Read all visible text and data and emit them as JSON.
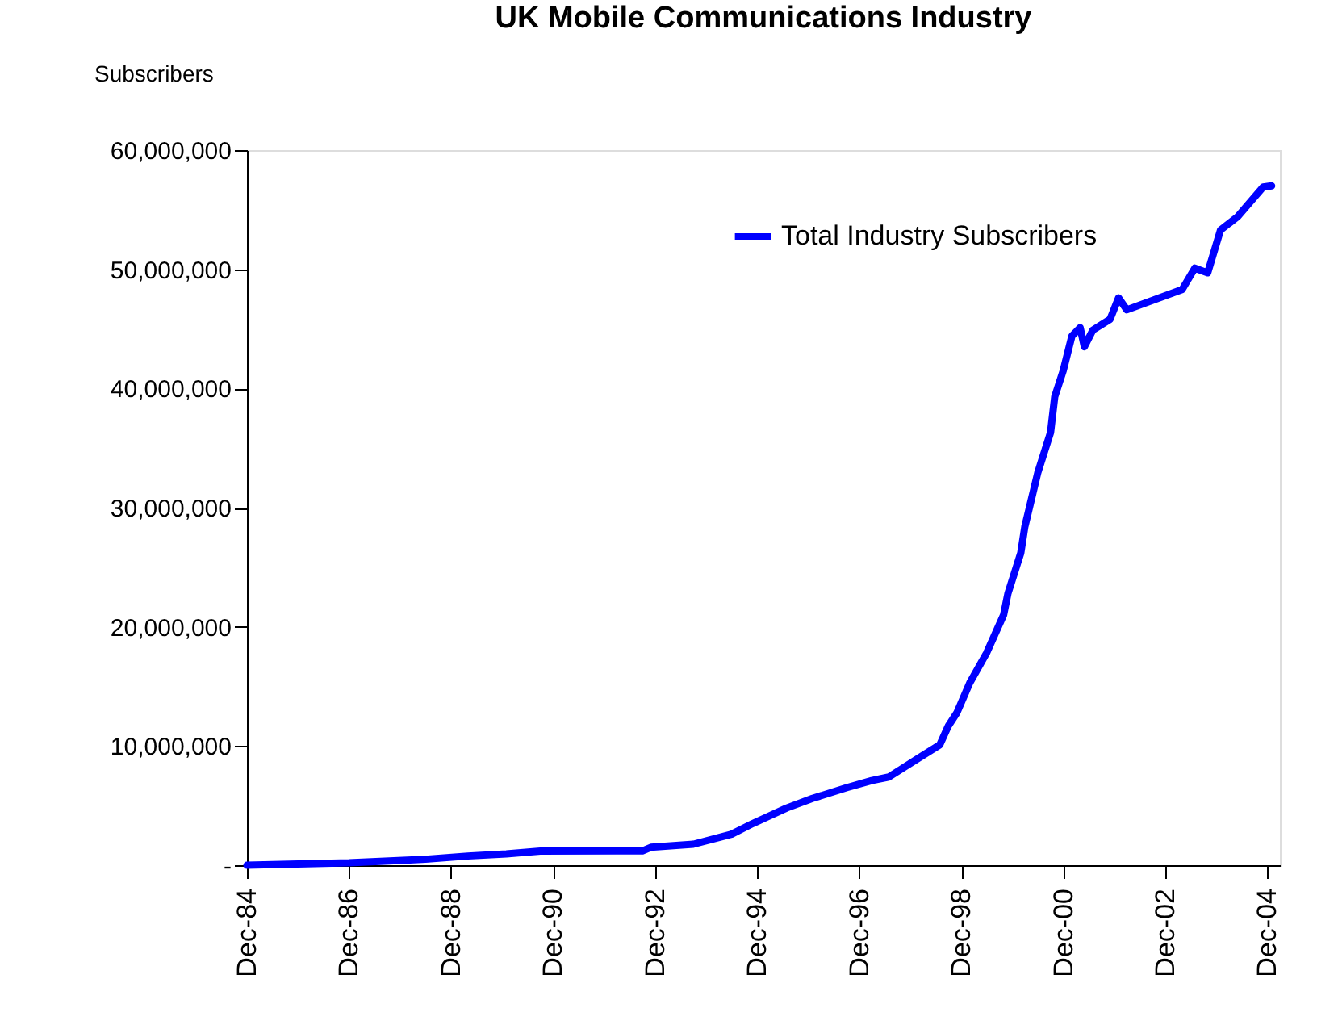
{
  "chart_data": {
    "type": "line",
    "title": "UK Mobile Communications Industry",
    "ylabel": "Subscribers",
    "x": [
      "1984-12",
      "1986-12",
      "1988-06",
      "1989-04",
      "1990-01",
      "1990-09",
      "1992-09",
      "1992-11",
      "1993-09",
      "1994-06",
      "1994-11",
      "1995-07",
      "1996-01",
      "1996-09",
      "1997-03",
      "1997-07",
      "1998-02",
      "1998-07",
      "1998-09",
      "1998-11",
      "1999-02",
      "1999-06",
      "1999-10",
      "1999-11",
      "2000-02",
      "2000-03",
      "2000-06",
      "2000-09",
      "2000-10",
      "2000-12",
      "2001-02",
      "2001-04",
      "2001-05",
      "2001-07",
      "2001-11",
      "2002-01",
      "2002-03",
      "2003-04",
      "2003-07",
      "2003-10",
      "2004-01",
      "2004-05",
      "2004-11",
      "2005-01"
    ],
    "series": [
      {
        "name": "Total Industry Subscribers",
        "color": "#0000ff",
        "values": [
          0,
          200000,
          500000,
          770000,
          950000,
          1180000,
          1200000,
          1500000,
          1760000,
          2600000,
          3500000,
          4800000,
          5600000,
          6500000,
          7100000,
          7400000,
          9000000,
          10100000,
          11700000,
          12800000,
          15300000,
          17800000,
          21000000,
          22800000,
          26200000,
          28400000,
          32900000,
          36300000,
          39300000,
          41500000,
          44400000,
          45100000,
          43500000,
          44900000,
          45800000,
          47600000,
          46600000,
          48300000,
          50100000,
          49700000,
          53300000,
          54400000,
          56900000,
          57000000
        ]
      }
    ],
    "xlim": [
      "1984-12",
      "2005-03"
    ],
    "xticks": [
      {
        "value": "1984-12",
        "label": "Dec-84"
      },
      {
        "value": "1986-12",
        "label": "Dec-86"
      },
      {
        "value": "1988-12",
        "label": "Dec-88"
      },
      {
        "value": "1990-12",
        "label": "Dec-90"
      },
      {
        "value": "1992-12",
        "label": "Dec-92"
      },
      {
        "value": "1994-12",
        "label": "Dec-94"
      },
      {
        "value": "1996-12",
        "label": "Dec-96"
      },
      {
        "value": "1998-12",
        "label": "Dec-98"
      },
      {
        "value": "2000-12",
        "label": "Dec-00"
      },
      {
        "value": "2002-12",
        "label": "Dec-02"
      },
      {
        "value": "2004-12",
        "label": "Dec-04"
      }
    ],
    "ylim": [
      0,
      60000000
    ],
    "yticks": [
      {
        "value": 0,
        "label": "-"
      },
      {
        "value": 10000000,
        "label": "10,000,000"
      },
      {
        "value": 20000000,
        "label": "20,000,000"
      },
      {
        "value": 30000000,
        "label": "30,000,000"
      },
      {
        "value": 40000000,
        "label": "40,000,000"
      },
      {
        "value": 50000000,
        "label": "50,000,000"
      },
      {
        "value": 60000000,
        "label": "60,000,000"
      }
    ],
    "grid": false,
    "legend": "top",
    "marker": "none",
    "line_style": "solid"
  }
}
